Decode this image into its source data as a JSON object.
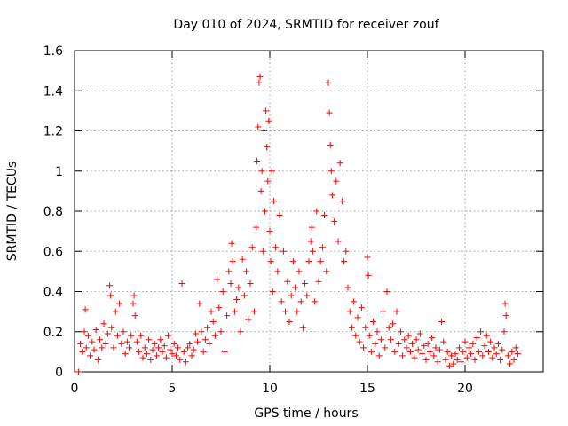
{
  "chart_data": {
    "type": "scatter",
    "title": "Day 010 of 2024, SRMTID for receiver zouf",
    "xlabel": "GPS time / hours",
    "ylabel": "SRMTID / TECUs",
    "xlim": [
      0,
      24
    ],
    "ylim": [
      0,
      1.6
    ],
    "xticks": [
      0,
      5,
      10,
      15,
      20
    ],
    "yticks": [
      0,
      0.2,
      0.4,
      0.6,
      0.8,
      1,
      1.2,
      1.4,
      1.6
    ],
    "xtick_labels": [
      "0",
      "5",
      "10",
      "15",
      "20"
    ],
    "ytick_labels": [
      "0",
      "0.2",
      "0.4",
      "0.6",
      "0.8",
      "1",
      "1.2",
      "1.4",
      "1.6"
    ],
    "grid": true,
    "marker": "+",
    "color": "#ff0000",
    "series": [
      {
        "name": "SRMTID",
        "points": [
          [
            0.2,
            0.0
          ],
          [
            0.3,
            0.14
          ],
          [
            0.4,
            0.1
          ],
          [
            0.5,
            0.2
          ],
          [
            0.55,
            0.31
          ],
          [
            0.6,
            0.12
          ],
          [
            0.7,
            0.18
          ],
          [
            0.8,
            0.08
          ],
          [
            0.9,
            0.15
          ],
          [
            1.0,
            0.11
          ],
          [
            1.1,
            0.21
          ],
          [
            1.2,
            0.06
          ],
          [
            1.3,
            0.16
          ],
          [
            1.4,
            0.12
          ],
          [
            1.5,
            0.24
          ],
          [
            1.6,
            0.14
          ],
          [
            1.7,
            0.19
          ],
          [
            1.8,
            0.43
          ],
          [
            1.85,
            0.38
          ],
          [
            1.9,
            0.22
          ],
          [
            2.0,
            0.12
          ],
          [
            2.1,
            0.3
          ],
          [
            2.2,
            0.18
          ],
          [
            2.3,
            0.34
          ],
          [
            2.4,
            0.14
          ],
          [
            2.5,
            0.2
          ],
          [
            2.6,
            0.09
          ],
          [
            2.7,
            0.15
          ],
          [
            2.8,
            0.12
          ],
          [
            2.9,
            0.18
          ],
          [
            3.0,
            0.34
          ],
          [
            3.05,
            0.38
          ],
          [
            3.1,
            0.28
          ],
          [
            3.2,
            0.15
          ],
          [
            3.3,
            0.1
          ],
          [
            3.4,
            0.18
          ],
          [
            3.5,
            0.07
          ],
          [
            3.6,
            0.12
          ],
          [
            3.7,
            0.09
          ],
          [
            3.8,
            0.16
          ],
          [
            3.9,
            0.06
          ],
          [
            4.0,
            0.11
          ],
          [
            4.1,
            0.14
          ],
          [
            4.2,
            0.08
          ],
          [
            4.3,
            0.12
          ],
          [
            4.4,
            0.16
          ],
          [
            4.5,
            0.1
          ],
          [
            4.6,
            0.13
          ],
          [
            4.7,
            0.07
          ],
          [
            4.8,
            0.18
          ],
          [
            4.9,
            0.11
          ],
          [
            5.0,
            0.09
          ],
          [
            5.1,
            0.14
          ],
          [
            5.2,
            0.08
          ],
          [
            5.3,
            0.12
          ],
          [
            5.4,
            0.06
          ],
          [
            5.5,
            0.44
          ],
          [
            5.6,
            0.1
          ],
          [
            5.7,
            0.05
          ],
          [
            5.8,
            0.12
          ],
          [
            5.9,
            0.14
          ],
          [
            6.0,
            0.08
          ],
          [
            6.1,
            0.11
          ],
          [
            6.2,
            0.19
          ],
          [
            6.3,
            0.15
          ],
          [
            6.4,
            0.34
          ],
          [
            6.5,
            0.2
          ],
          [
            6.6,
            0.1
          ],
          [
            6.7,
            0.16
          ],
          [
            6.8,
            0.22
          ],
          [
            6.9,
            0.14
          ],
          [
            7.0,
            0.3
          ],
          [
            7.1,
            0.25
          ],
          [
            7.2,
            0.18
          ],
          [
            7.3,
            0.46
          ],
          [
            7.4,
            0.32
          ],
          [
            7.5,
            0.2
          ],
          [
            7.6,
            0.4
          ],
          [
            7.7,
            0.1
          ],
          [
            7.8,
            0.28
          ],
          [
            7.9,
            0.5
          ],
          [
            8.0,
            0.44
          ],
          [
            8.05,
            0.64
          ],
          [
            8.1,
            0.55
          ],
          [
            8.2,
            0.3
          ],
          [
            8.3,
            0.36
          ],
          [
            8.4,
            0.42
          ],
          [
            8.5,
            0.2
          ],
          [
            8.6,
            0.56
          ],
          [
            8.7,
            0.38
          ],
          [
            8.8,
            0.5
          ],
          [
            8.9,
            0.26
          ],
          [
            9.0,
            0.44
          ],
          [
            9.1,
            0.62
          ],
          [
            9.2,
            0.3
          ],
          [
            9.3,
            0.72
          ],
          [
            9.35,
            1.05
          ],
          [
            9.4,
            1.22
          ],
          [
            9.45,
            1.44
          ],
          [
            9.5,
            1.47
          ],
          [
            9.55,
            0.9
          ],
          [
            9.6,
            1.0
          ],
          [
            9.65,
            0.6
          ],
          [
            9.7,
            1.2
          ],
          [
            9.75,
            0.8
          ],
          [
            9.8,
            1.3
          ],
          [
            9.85,
            1.12
          ],
          [
            9.9,
            0.95
          ],
          [
            9.95,
            1.25
          ],
          [
            10.0,
            0.7
          ],
          [
            10.05,
            0.55
          ],
          [
            10.1,
            1.0
          ],
          [
            10.15,
            0.4
          ],
          [
            10.2,
            0.85
          ],
          [
            10.3,
            0.62
          ],
          [
            10.4,
            0.5
          ],
          [
            10.5,
            0.78
          ],
          [
            10.6,
            0.35
          ],
          [
            10.7,
            0.6
          ],
          [
            10.8,
            0.3
          ],
          [
            10.9,
            0.45
          ],
          [
            11.0,
            0.25
          ],
          [
            11.1,
            0.38
          ],
          [
            11.2,
            0.55
          ],
          [
            11.3,
            0.42
          ],
          [
            11.4,
            0.3
          ],
          [
            11.5,
            0.5
          ],
          [
            11.6,
            0.35
          ],
          [
            11.7,
            0.22
          ],
          [
            11.8,
            0.44
          ],
          [
            11.9,
            0.38
          ],
          [
            12.0,
            0.55
          ],
          [
            12.1,
            0.65
          ],
          [
            12.15,
            0.72
          ],
          [
            12.2,
            0.6
          ],
          [
            12.3,
            0.35
          ],
          [
            12.4,
            0.8
          ],
          [
            12.5,
            0.45
          ],
          [
            12.6,
            0.55
          ],
          [
            12.7,
            0.62
          ],
          [
            12.8,
            0.78
          ],
          [
            12.9,
            0.5
          ],
          [
            13.0,
            1.44
          ],
          [
            13.05,
            1.29
          ],
          [
            13.1,
            1.13
          ],
          [
            13.15,
            1.0
          ],
          [
            13.2,
            0.88
          ],
          [
            13.3,
            0.75
          ],
          [
            13.4,
            0.95
          ],
          [
            13.5,
            0.65
          ],
          [
            13.6,
            1.04
          ],
          [
            13.7,
            0.85
          ],
          [
            13.8,
            0.55
          ],
          [
            13.9,
            0.6
          ],
          [
            14.0,
            0.42
          ],
          [
            14.1,
            0.3
          ],
          [
            14.2,
            0.22
          ],
          [
            14.3,
            0.35
          ],
          [
            14.4,
            0.18
          ],
          [
            14.5,
            0.27
          ],
          [
            14.6,
            0.15
          ],
          [
            14.7,
            0.32
          ],
          [
            14.8,
            0.12
          ],
          [
            14.9,
            0.22
          ],
          [
            15.0,
            0.57
          ],
          [
            15.05,
            0.48
          ],
          [
            15.1,
            0.18
          ],
          [
            15.2,
            0.1
          ],
          [
            15.3,
            0.25
          ],
          [
            15.4,
            0.14
          ],
          [
            15.5,
            0.2
          ],
          [
            15.6,
            0.08
          ],
          [
            15.7,
            0.16
          ],
          [
            15.8,
            0.3
          ],
          [
            15.9,
            0.12
          ],
          [
            16.0,
            0.4
          ],
          [
            16.1,
            0.22
          ],
          [
            16.2,
            0.16
          ],
          [
            16.3,
            0.24
          ],
          [
            16.4,
            0.1
          ],
          [
            16.5,
            0.3
          ],
          [
            16.6,
            0.14
          ],
          [
            16.7,
            0.2
          ],
          [
            16.8,
            0.08
          ],
          [
            16.9,
            0.16
          ],
          [
            17.0,
            0.12
          ],
          [
            17.1,
            0.18
          ],
          [
            17.2,
            0.1
          ],
          [
            17.3,
            0.14
          ],
          [
            17.4,
            0.07
          ],
          [
            17.5,
            0.16
          ],
          [
            17.6,
            0.11
          ],
          [
            17.7,
            0.19
          ],
          [
            17.8,
            0.09
          ],
          [
            17.9,
            0.13
          ],
          [
            18.0,
            0.06
          ],
          [
            18.1,
            0.14
          ],
          [
            18.2,
            0.1
          ],
          [
            18.3,
            0.17
          ],
          [
            18.4,
            0.08
          ],
          [
            18.5,
            0.12
          ],
          [
            18.6,
            0.05
          ],
          [
            18.7,
            0.11
          ],
          [
            18.8,
            0.25
          ],
          [
            18.9,
            0.15
          ],
          [
            19.0,
            0.06
          ],
          [
            19.1,
            0.1
          ],
          [
            19.2,
            0.03
          ],
          [
            19.3,
            0.08
          ],
          [
            19.4,
            0.04
          ],
          [
            19.5,
            0.09
          ],
          [
            19.6,
            0.06
          ],
          [
            19.7,
            0.12
          ],
          [
            19.8,
            0.05
          ],
          [
            19.9,
            0.1
          ],
          [
            20.0,
            0.15
          ],
          [
            20.1,
            0.07
          ],
          [
            20.2,
            0.12
          ],
          [
            20.3,
            0.09
          ],
          [
            20.4,
            0.14
          ],
          [
            20.5,
            0.06
          ],
          [
            20.6,
            0.17
          ],
          [
            20.7,
            0.1
          ],
          [
            20.8,
            0.2
          ],
          [
            20.9,
            0.08
          ],
          [
            21.0,
            0.13
          ],
          [
            21.1,
            0.18
          ],
          [
            21.2,
            0.1
          ],
          [
            21.3,
            0.15
          ],
          [
            21.4,
            0.07
          ],
          [
            21.5,
            0.12
          ],
          [
            21.6,
            0.09
          ],
          [
            21.7,
            0.14
          ],
          [
            21.8,
            0.06
          ],
          [
            21.9,
            0.11
          ],
          [
            22.0,
            0.2
          ],
          [
            22.05,
            0.34
          ],
          [
            22.1,
            0.28
          ],
          [
            22.2,
            0.08
          ],
          [
            22.3,
            0.04
          ],
          [
            22.4,
            0.1
          ],
          [
            22.5,
            0.06
          ],
          [
            22.6,
            0.12
          ],
          [
            22.7,
            0.09
          ]
        ]
      }
    ]
  }
}
